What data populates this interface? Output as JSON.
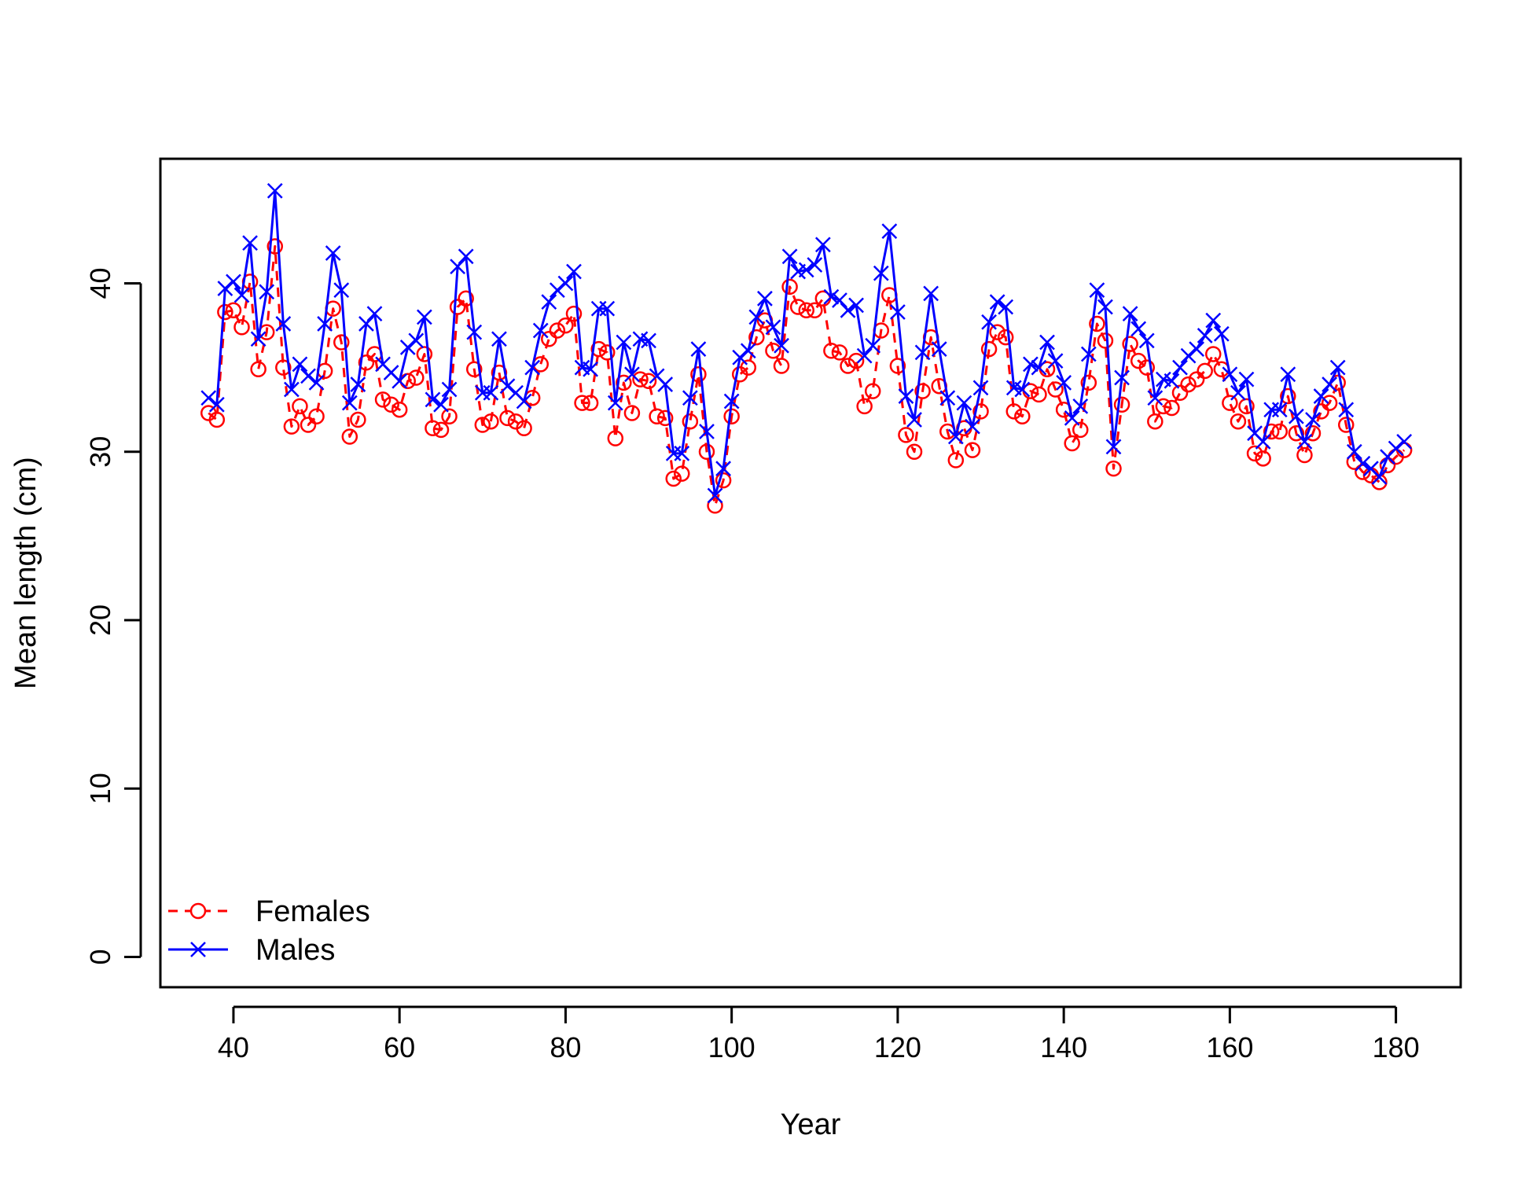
{
  "chart_data": {
    "type": "line",
    "title": "",
    "xlabel": "Year",
    "ylabel": "Mean length (cm)",
    "xlim": [
      31.2,
      187.8
    ],
    "ylim": [
      -1.8,
      47.4
    ],
    "xticks": [
      40,
      60,
      80,
      100,
      120,
      140,
      160,
      180
    ],
    "yticks": [
      0,
      10,
      20,
      30,
      40
    ],
    "xtick_labels": [
      "40",
      "60",
      "80",
      "100",
      "120",
      "140",
      "160",
      "180"
    ],
    "ytick_labels": [
      "0",
      "10",
      "20",
      "30",
      "40"
    ],
    "grid": false,
    "legend_position": "bottom-left",
    "x": [
      37,
      38,
      39,
      40,
      41,
      42,
      43,
      44,
      45,
      46,
      47,
      48,
      49,
      50,
      51,
      52,
      53,
      54,
      55,
      56,
      57,
      58,
      59,
      60,
      61,
      62,
      63,
      64,
      65,
      66,
      67,
      68,
      69,
      70,
      71,
      72,
      73,
      74,
      75,
      76,
      77,
      78,
      79,
      80,
      81,
      82,
      83,
      84,
      85,
      86,
      87,
      88,
      89,
      90,
      91,
      92,
      93,
      94,
      95,
      96,
      97,
      98,
      99,
      100,
      101,
      102,
      103,
      104,
      105,
      106,
      107,
      108,
      109,
      110,
      111,
      112,
      113,
      114,
      115,
      116,
      117,
      118,
      119,
      120,
      121,
      122,
      123,
      124,
      125,
      126,
      127,
      128,
      129,
      130,
      131,
      132,
      133,
      134,
      135,
      136,
      137,
      138,
      139,
      140,
      141,
      142,
      143,
      144,
      145,
      146,
      147,
      148,
      149,
      150,
      151,
      152,
      153,
      154,
      155,
      156,
      157,
      158,
      159,
      160,
      161,
      162,
      163,
      164,
      165,
      166,
      167,
      168,
      169,
      170,
      171,
      172,
      173,
      174,
      175,
      176,
      177,
      178,
      179,
      180,
      181
    ],
    "series": [
      {
        "name": "Females",
        "color": "#ff0000",
        "line_style": "dashed",
        "marker": "circle",
        "values": [
          32.3,
          31.9,
          38.3,
          38.4,
          37.4,
          40.1,
          34.9,
          37.1,
          42.2,
          35.0,
          31.5,
          32.7,
          31.6,
          32.1,
          34.8,
          38.5,
          36.5,
          30.9,
          31.9,
          35.3,
          35.8,
          33.1,
          32.8,
          32.5,
          34.2,
          34.4,
          35.8,
          31.4,
          31.3,
          32.1,
          38.6,
          39.1,
          34.9,
          31.6,
          31.8,
          34.7,
          32.0,
          31.8,
          31.4,
          33.2,
          35.2,
          36.7,
          37.2,
          37.5,
          38.2,
          32.9,
          32.9,
          36.1,
          35.9,
          30.8,
          34.1,
          32.3,
          34.3,
          34.2,
          32.1,
          32.0,
          28.4,
          28.7,
          31.8,
          34.6,
          30.0,
          26.8,
          28.3,
          32.1,
          34.6,
          35.0,
          36.8,
          37.8,
          36.0,
          35.1,
          39.8,
          38.6,
          38.4,
          38.4,
          39.1,
          36.0,
          35.9,
          35.1,
          35.4,
          32.7,
          33.6,
          37.2,
          39.3,
          35.1,
          31.0,
          30.0,
          33.6,
          36.8,
          33.9,
          31.2,
          29.5,
          31.4,
          30.1,
          32.4,
          36.1,
          37.1,
          36.8,
          32.4,
          32.1,
          33.6,
          33.4,
          34.9,
          33.7,
          32.5,
          30.5,
          31.3,
          34.1,
          37.6,
          36.6,
          29.0,
          32.8,
          36.4,
          35.4,
          35.0,
          31.8,
          32.7,
          32.6,
          33.5,
          34.0,
          34.3,
          34.8,
          35.8,
          34.9,
          32.9,
          31.8,
          32.7,
          29.9,
          29.6,
          31.2,
          31.2,
          33.3,
          31.1,
          29.8,
          31.1,
          32.4,
          32.9,
          34.1,
          31.6,
          29.4,
          28.8,
          28.6,
          28.2,
          29.2,
          29.7,
          30.1
        ]
      },
      {
        "name": "Males",
        "color": "#0000ff",
        "line_style": "solid",
        "marker": "x",
        "values": [
          33.2,
          32.8,
          39.7,
          40.1,
          39.3,
          42.4,
          36.7,
          39.5,
          45.5,
          37.6,
          33.7,
          35.2,
          34.5,
          34.1,
          37.6,
          41.8,
          39.6,
          32.9,
          34.0,
          37.6,
          38.2,
          35.2,
          34.7,
          34.2,
          36.2,
          36.6,
          38.0,
          33.1,
          32.8,
          33.7,
          41.0,
          41.6,
          37.1,
          33.5,
          33.5,
          36.7,
          33.9,
          33.5,
          33.0,
          35.0,
          37.2,
          38.9,
          39.6,
          40.0,
          40.7,
          35.0,
          34.9,
          38.5,
          38.5,
          32.9,
          36.5,
          34.6,
          36.7,
          36.6,
          34.5,
          34.0,
          29.9,
          29.9,
          33.2,
          36.1,
          31.2,
          27.4,
          29.0,
          33.0,
          35.6,
          36.0,
          38.0,
          39.1,
          37.4,
          36.3,
          41.6,
          40.7,
          40.8,
          41.1,
          42.3,
          39.2,
          39.0,
          38.4,
          38.7,
          35.7,
          36.3,
          40.6,
          43.1,
          38.3,
          33.3,
          31.9,
          35.9,
          39.4,
          36.1,
          33.2,
          30.9,
          32.9,
          31.5,
          33.8,
          37.7,
          38.9,
          38.6,
          33.8,
          33.7,
          35.2,
          35.0,
          36.5,
          35.4,
          34.1,
          32.0,
          32.7,
          35.8,
          39.6,
          38.6,
          30.3,
          34.4,
          38.2,
          37.3,
          36.6,
          33.2,
          34.3,
          34.2,
          35.0,
          35.7,
          36.1,
          36.9,
          37.8,
          37.0,
          34.6,
          33.5,
          34.3,
          31.1,
          30.6,
          32.5,
          32.5,
          34.6,
          32.1,
          30.6,
          31.9,
          33.3,
          34.0,
          35.0,
          32.5,
          30.0,
          29.3,
          29.0,
          28.5,
          29.7,
          30.2,
          30.6
        ]
      }
    ]
  }
}
